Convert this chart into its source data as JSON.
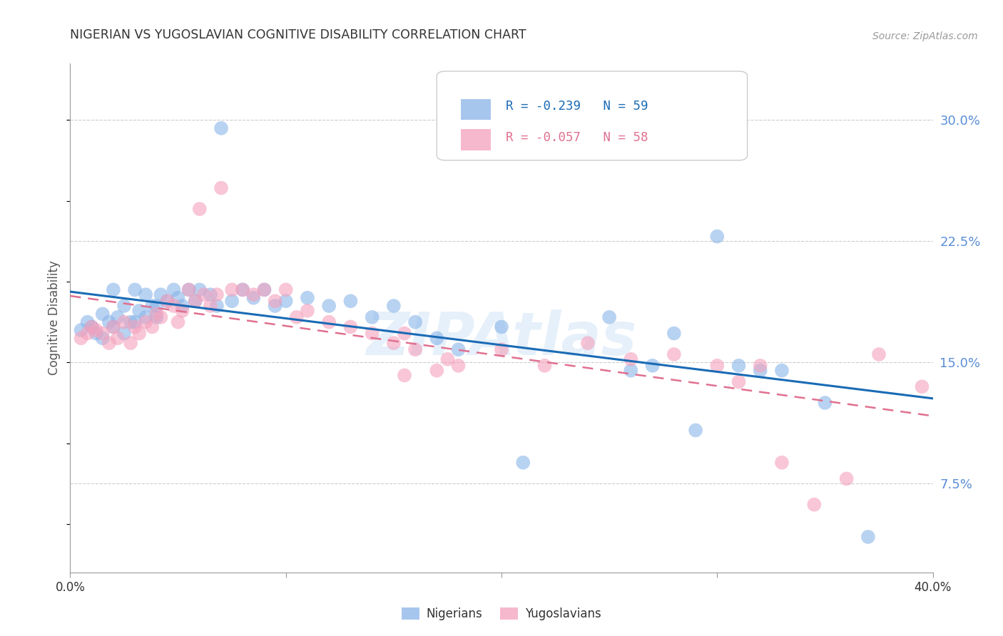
{
  "title": "NIGERIAN VS YUGOSLAVIAN COGNITIVE DISABILITY CORRELATION CHART",
  "source": "Source: ZipAtlas.com",
  "ylabel": "Cognitive Disability",
  "ytick_labels": [
    "7.5%",
    "15.0%",
    "22.5%",
    "30.0%"
  ],
  "ytick_values": [
    0.075,
    0.15,
    0.225,
    0.3
  ],
  "xlim": [
    0.0,
    0.4
  ],
  "ylim": [
    0.02,
    0.335
  ],
  "nigerian_color": "#8ab4e8",
  "yugoslavian_color": "#f4a0bc",
  "nigerian_line_color": "#1a6bb5",
  "yugoslavian_line_color": "#e07090",
  "watermark": "ZIPAtlas",
  "nigerian_x": [
    0.005,
    0.008,
    0.01,
    0.012,
    0.015,
    0.015,
    0.018,
    0.02,
    0.02,
    0.022,
    0.025,
    0.025,
    0.028,
    0.03,
    0.03,
    0.032,
    0.035,
    0.035,
    0.038,
    0.04,
    0.04,
    0.042,
    0.045,
    0.048,
    0.05,
    0.052,
    0.055,
    0.058,
    0.06,
    0.065,
    0.068,
    0.07,
    0.075,
    0.08,
    0.085,
    0.09,
    0.095,
    0.1,
    0.11,
    0.12,
    0.13,
    0.14,
    0.15,
    0.16,
    0.17,
    0.18,
    0.2,
    0.21,
    0.25,
    0.26,
    0.27,
    0.28,
    0.29,
    0.3,
    0.31,
    0.32,
    0.33,
    0.35,
    0.37
  ],
  "nigerian_y": [
    0.17,
    0.175,
    0.172,
    0.168,
    0.18,
    0.165,
    0.175,
    0.195,
    0.172,
    0.178,
    0.185,
    0.168,
    0.175,
    0.195,
    0.175,
    0.182,
    0.178,
    0.192,
    0.185,
    0.178,
    0.185,
    0.192,
    0.188,
    0.195,
    0.19,
    0.185,
    0.195,
    0.188,
    0.195,
    0.192,
    0.185,
    0.295,
    0.188,
    0.195,
    0.19,
    0.195,
    0.185,
    0.188,
    0.19,
    0.185,
    0.188,
    0.178,
    0.185,
    0.175,
    0.165,
    0.158,
    0.172,
    0.088,
    0.178,
    0.145,
    0.148,
    0.168,
    0.108,
    0.228,
    0.148,
    0.145,
    0.145,
    0.125,
    0.042
  ],
  "yugoslavian_x": [
    0.005,
    0.008,
    0.01,
    0.012,
    0.015,
    0.018,
    0.02,
    0.022,
    0.025,
    0.028,
    0.03,
    0.032,
    0.035,
    0.038,
    0.04,
    0.042,
    0.045,
    0.048,
    0.05,
    0.052,
    0.055,
    0.058,
    0.06,
    0.062,
    0.065,
    0.068,
    0.07,
    0.075,
    0.08,
    0.085,
    0.09,
    0.095,
    0.1,
    0.105,
    0.11,
    0.12,
    0.13,
    0.14,
    0.15,
    0.155,
    0.16,
    0.17,
    0.175,
    0.18,
    0.2,
    0.22,
    0.24,
    0.26,
    0.28,
    0.3,
    0.31,
    0.32,
    0.33,
    0.345,
    0.36,
    0.375,
    0.395,
    0.155
  ],
  "yugoslavian_y": [
    0.165,
    0.168,
    0.172,
    0.17,
    0.168,
    0.162,
    0.172,
    0.165,
    0.175,
    0.162,
    0.172,
    0.168,
    0.175,
    0.172,
    0.18,
    0.178,
    0.188,
    0.185,
    0.175,
    0.182,
    0.195,
    0.188,
    0.245,
    0.192,
    0.185,
    0.192,
    0.258,
    0.195,
    0.195,
    0.192,
    0.195,
    0.188,
    0.195,
    0.178,
    0.182,
    0.175,
    0.172,
    0.168,
    0.162,
    0.168,
    0.158,
    0.145,
    0.152,
    0.148,
    0.158,
    0.148,
    0.162,
    0.152,
    0.155,
    0.148,
    0.138,
    0.148,
    0.088,
    0.062,
    0.078,
    0.155,
    0.135,
    0.142
  ]
}
